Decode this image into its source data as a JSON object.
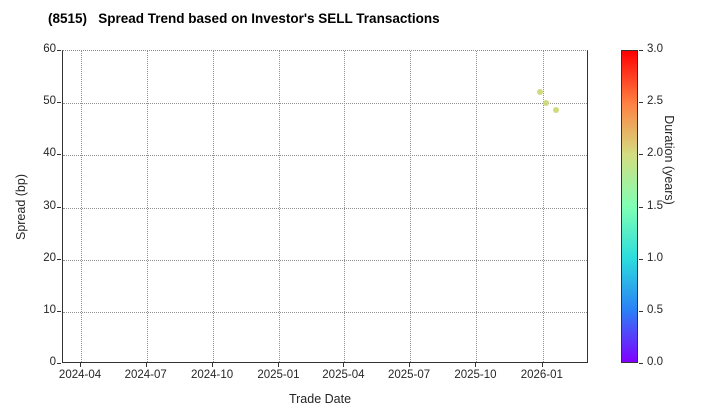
{
  "figure": {
    "background": "#ffffff",
    "text_color": "#262626",
    "spine_color": "#333333",
    "grid_color": "#8f8f8f"
  },
  "chart_data": {
    "type": "scatter",
    "title": "(8515)   Spread Trend based on Investor's SELL Transactions",
    "xlabel": "Trade Date",
    "ylabel": "Spread (bp)",
    "ylim": [
      0,
      60
    ],
    "yticks": [
      0,
      10,
      20,
      30,
      40,
      50,
      60
    ],
    "xlim_dates": [
      "2024-03-07",
      "2026-03-06"
    ],
    "xticks": [
      {
        "label": "2024-04",
        "date": "2024-04-01"
      },
      {
        "label": "2024-07",
        "date": "2024-07-01"
      },
      {
        "label": "2024-10",
        "date": "2024-10-01"
      },
      {
        "label": "2025-01",
        "date": "2025-01-01"
      },
      {
        "label": "2025-04",
        "date": "2025-04-01"
      },
      {
        "label": "2025-07",
        "date": "2025-07-01"
      },
      {
        "label": "2025-10",
        "date": "2025-10-01"
      },
      {
        "label": "2026-01",
        "date": "2026-01-01"
      }
    ],
    "grid": {
      "on": true,
      "style": "dotted"
    },
    "points": [
      {
        "date": "2025-12-28",
        "spread_bp": 52.1,
        "duration_years": 2.0,
        "color": "#cdd878"
      },
      {
        "date": "2026-01-06",
        "spread_bp": 50.0,
        "duration_years": 2.0,
        "color": "#cdd878"
      },
      {
        "date": "2026-01-19",
        "spread_bp": 48.7,
        "duration_years": 1.95,
        "color": "#cdd878"
      }
    ],
    "colorbar": {
      "label": "Duration (years)",
      "min": 0.0,
      "max": 3.0,
      "ticks": [
        "3.0",
        "2.5",
        "2.0",
        "1.5",
        "1.0",
        "0.5",
        "0.0"
      ],
      "colormap": "rainbow",
      "gradient_stops_bottom_to_top": [
        "#8000ff",
        "#2b80f6",
        "#2bdddd",
        "#80ffb4",
        "#d4dd80",
        "#ff8042",
        "#ff0000"
      ]
    }
  }
}
